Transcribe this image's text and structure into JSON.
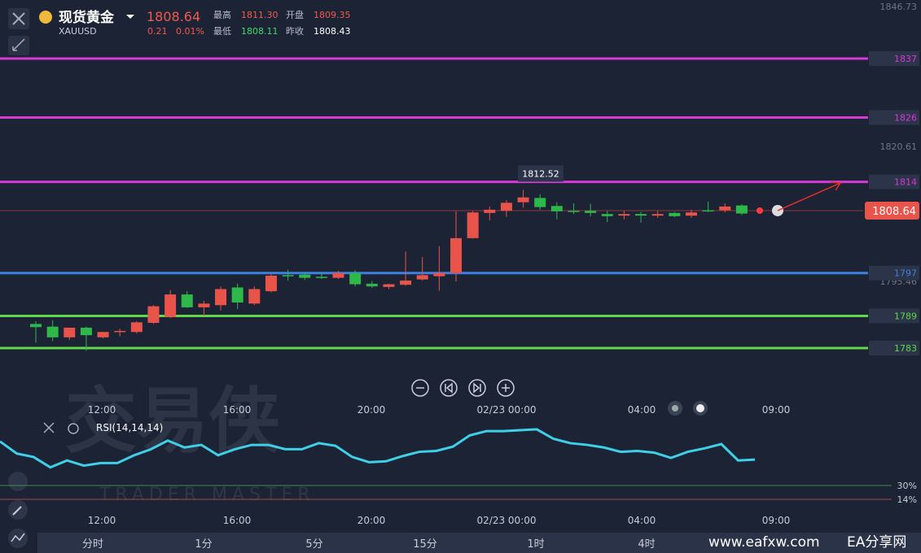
{
  "header": {
    "name": "现货黄金",
    "symbol": "XAUUSD",
    "price": 1808.64,
    "change": 0.21,
    "change_pct": "0.01%",
    "high_label": "最高",
    "high": "1811.30",
    "open_label": "开盘",
    "open": "1809.35",
    "low_label": "最低",
    "low": "1808.11",
    "prev_label": "昨收",
    "prev": "1808.43"
  },
  "price_axis": [
    1846.73,
    1820.61,
    1795.46
  ],
  "levels": [
    {
      "value": 1837,
      "color": "#d63ad6"
    },
    {
      "value": 1826,
      "color": "#d63ad6"
    },
    {
      "value": 1814,
      "color": "#d63ad6"
    },
    {
      "value": 1797,
      "color": "#3f7fe0"
    },
    {
      "value": 1789,
      "color": "#5fd84a"
    },
    {
      "value": 1783,
      "color": "#5fd84a"
    }
  ],
  "current_price": 1808.64,
  "high_marker": 1812.52,
  "candles": [
    [
      1787.5,
      1788,
      1784,
      1786.9
    ],
    [
      1787,
      1788.2,
      1784.3,
      1785
    ],
    [
      1785,
      1786.5,
      1784.5,
      1786.8
    ],
    [
      1786.8,
      1787,
      1782.5,
      1785.4
    ],
    [
      1785,
      1786,
      1784.8,
      1786
    ],
    [
      1786,
      1786.6,
      1785.2,
      1786.2
    ],
    [
      1786,
      1788,
      1785.7,
      1787.8
    ],
    [
      1787.7,
      1791,
      1787.5,
      1790.8
    ],
    [
      1788.8,
      1793.8,
      1788.6,
      1793
    ],
    [
      1793,
      1793.6,
      1790.5,
      1790.6
    ],
    [
      1790.6,
      1791.8,
      1789,
      1791.3
    ],
    [
      1791,
      1794.5,
      1790,
      1794
    ],
    [
      1794.3,
      1795,
      1790.3,
      1791.5
    ],
    [
      1791.3,
      1794.5,
      1791,
      1794
    ],
    [
      1793.6,
      1796.8,
      1793.4,
      1796.5
    ],
    [
      1796.6,
      1797.6,
      1795.6,
      1796.4
    ],
    [
      1796.7,
      1797,
      1795.7,
      1796.1
    ],
    [
      1796.3,
      1797.2,
      1795.9,
      1796.2
    ],
    [
      1796.1,
      1797.4,
      1795.9,
      1797
    ],
    [
      1797,
      1797.5,
      1794.5,
      1794.9
    ],
    [
      1795,
      1795.5,
      1794.2,
      1794.5
    ],
    [
      1794.4,
      1795,
      1794,
      1794.9
    ],
    [
      1794.8,
      1801,
      1794.6,
      1795.6
    ],
    [
      1795.8,
      1800,
      1795.6,
      1796.6
    ],
    [
      1796.4,
      1802,
      1793.7,
      1797
    ],
    [
      1797,
      1808.5,
      1795.4,
      1803.5
    ],
    [
      1803.5,
      1808.6,
      1803.4,
      1808.3
    ],
    [
      1808.2,
      1809.4,
      1806.8,
      1808.8
    ],
    [
      1808.6,
      1810.6,
      1807.5,
      1810.1
    ],
    [
      1810.2,
      1812.52,
      1809.2,
      1811.1
    ],
    [
      1811,
      1811.7,
      1808.8,
      1809.3
    ],
    [
      1809.5,
      1810.2,
      1807,
      1808.5
    ],
    [
      1808.6,
      1810,
      1808,
      1808.4
    ],
    [
      1808.6,
      1809.9,
      1807.6,
      1808.2
    ],
    [
      1808,
      1808.6,
      1806.5,
      1807.6
    ],
    [
      1807.7,
      1808.6,
      1807,
      1808
    ],
    [
      1808,
      1808.4,
      1806.4,
      1807.7
    ],
    [
      1807.7,
      1808.6,
      1807.3,
      1808
    ],
    [
      1808.2,
      1808.4,
      1807.4,
      1807.6
    ],
    [
      1807.7,
      1808.8,
      1807.3,
      1808.3
    ],
    [
      1808.7,
      1810.3,
      1808.4,
      1808.6
    ],
    [
      1808.7,
      1810,
      1808.3,
      1809.4
    ],
    [
      1809.6,
      1809.8,
      1807.8,
      1808.1
    ]
  ],
  "time_labels": [
    "12:00",
    "16:00",
    "20:00",
    "02/23 00:00",
    "04:00",
    "09:00"
  ],
  "rsi": {
    "label": "RSI(14,14,14)",
    "levels": [
      {
        "value": 30,
        "label": "30%"
      },
      {
        "value": 14,
        "label": "14%"
      }
    ],
    "values": [
      81,
      67,
      63,
      51,
      59,
      53,
      56,
      56,
      65,
      72,
      82,
      74,
      77,
      65,
      72,
      77,
      77,
      72,
      72,
      79,
      76,
      63,
      57,
      58,
      64,
      69,
      70,
      75,
      88,
      93,
      93,
      94,
      95,
      84,
      79,
      77,
      74,
      69,
      70,
      68,
      62,
      69,
      73,
      78,
      59,
      60
    ]
  },
  "tabs": [
    "分时",
    "1分",
    "5分",
    "15分",
    "1时",
    "4时"
  ],
  "watermark": {
    "cn": "交易侠",
    "en": "TRADER MASTER"
  },
  "footer": {
    "site": "www.eafxw.com",
    "brand": "EA分享网"
  }
}
